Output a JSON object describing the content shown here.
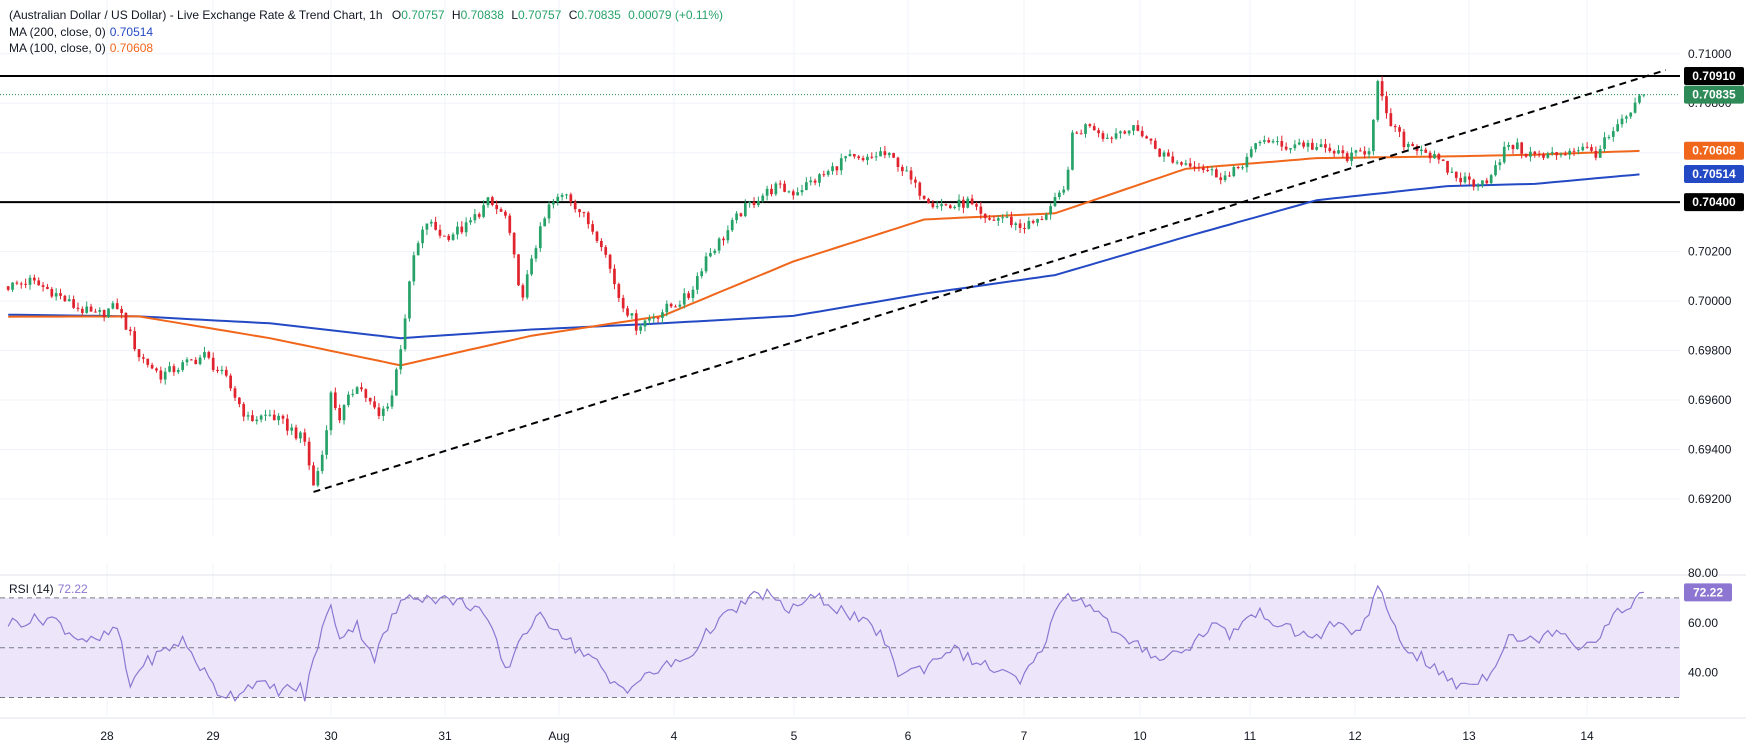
{
  "header": {
    "title": "(Australian Dollar / US Dollar) - Live Exchange Rate & Trend Chart, 1h",
    "ohlc": [
      {
        "label": "O",
        "value": "0.70757"
      },
      {
        "label": "H",
        "value": "0.70838"
      },
      {
        "label": "L",
        "value": "0.70757"
      },
      {
        "label": "C",
        "value": "0.70835"
      }
    ],
    "change": "0.00079 (+0.11%)"
  },
  "indicators": [
    {
      "label": "MA (200, close, 0)",
      "value": "0.70514",
      "color": "#2449c4"
    },
    {
      "label": "MA (100, close, 0)",
      "value": "0.70608",
      "color": "#f0661b"
    }
  ],
  "colors": {
    "up": "#26a269",
    "down": "#e0232d",
    "ma200": "#2449c4",
    "ma100": "#f0661b",
    "rsi": "#8d76d1",
    "rsi_band": "#ede6fb",
    "trend": "#000000",
    "last_price": "#2e8b57"
  },
  "chart_data": [
    {
      "type": "candlestick",
      "title": "(Australian Dollar / US Dollar) - Live Exchange Rate & Trend Chart, 1h",
      "xticks": [
        "28",
        "29",
        "30",
        "31",
        "Aug",
        "4",
        "5",
        "6",
        "7",
        "10",
        "11",
        "12",
        "13",
        "14"
      ],
      "ylim": [
        0.6905,
        0.7108
      ],
      "yticks": [
        "0.71000",
        "0.70800",
        "0.70600",
        "0.70400",
        "0.70200",
        "0.70000",
        "0.69800",
        "0.69600",
        "0.69400",
        "0.69200"
      ],
      "grid": true,
      "path_anchors": [
        [
          0,
          0.7006
        ],
        [
          5,
          0.7008
        ],
        [
          10,
          0.7004
        ],
        [
          15,
          0.6998
        ],
        [
          20,
          0.6994
        ],
        [
          25,
          0.6998
        ],
        [
          30,
          0.6978
        ],
        [
          35,
          0.697
        ],
        [
          40,
          0.6974
        ],
        [
          45,
          0.6978
        ],
        [
          50,
          0.6968
        ],
        [
          55,
          0.6952
        ],
        [
          60,
          0.6954
        ],
        [
          65,
          0.6948
        ],
        [
          68,
          0.6943
        ],
        [
          70,
          0.6925
        ],
        [
          72,
          0.6938
        ],
        [
          74,
          0.6962
        ],
        [
          76,
          0.6953
        ],
        [
          80,
          0.6967
        ],
        [
          85,
          0.6953
        ],
        [
          88,
          0.6962
        ],
        [
          90,
          0.6982
        ],
        [
          93,
          0.7018
        ],
        [
          96,
          0.7032
        ],
        [
          100,
          0.7026
        ],
        [
          105,
          0.703
        ],
        [
          110,
          0.704
        ],
        [
          114,
          0.7034
        ],
        [
          118,
          0.7
        ],
        [
          120,
          0.7018
        ],
        [
          124,
          0.7038
        ],
        [
          128,
          0.7044
        ],
        [
          132,
          0.7034
        ],
        [
          136,
          0.7024
        ],
        [
          140,
          0.7002
        ],
        [
          144,
          0.699
        ],
        [
          148,
          0.6994
        ],
        [
          152,
          0.6998
        ],
        [
          156,
          0.7002
        ],
        [
          160,
          0.7018
        ],
        [
          164,
          0.7026
        ],
        [
          168,
          0.7036
        ],
        [
          172,
          0.7042
        ],
        [
          176,
          0.7046
        ],
        [
          180,
          0.7044
        ],
        [
          184,
          0.7048
        ],
        [
          188,
          0.7052
        ],
        [
          192,
          0.7058
        ],
        [
          196,
          0.7056
        ],
        [
          200,
          0.706
        ],
        [
          204,
          0.7056
        ],
        [
          208,
          0.7046
        ],
        [
          212,
          0.704
        ],
        [
          216,
          0.7038
        ],
        [
          220,
          0.704
        ],
        [
          224,
          0.7032
        ],
        [
          228,
          0.7034
        ],
        [
          232,
          0.703
        ],
        [
          236,
          0.7032
        ],
        [
          240,
          0.704
        ],
        [
          242,
          0.7044
        ],
        [
          244,
          0.7066
        ],
        [
          248,
          0.7072
        ],
        [
          252,
          0.7066
        ],
        [
          256,
          0.707
        ],
        [
          260,
          0.7068
        ],
        [
          264,
          0.706
        ],
        [
          268,
          0.7056
        ],
        [
          272,
          0.7056
        ],
        [
          276,
          0.7052
        ],
        [
          280,
          0.705
        ],
        [
          284,
          0.7058
        ],
        [
          288,
          0.7066
        ],
        [
          292,
          0.7062
        ],
        [
          296,
          0.7064
        ],
        [
          300,
          0.7062
        ],
        [
          304,
          0.706
        ],
        [
          308,
          0.7058
        ],
        [
          312,
          0.7062
        ],
        [
          314,
          0.7088
        ],
        [
          316,
          0.7074
        ],
        [
          320,
          0.7064
        ],
        [
          324,
          0.7062
        ],
        [
          328,
          0.7056
        ],
        [
          332,
          0.705
        ],
        [
          336,
          0.7048
        ],
        [
          340,
          0.705
        ],
        [
          344,
          0.7064
        ],
        [
          348,
          0.706
        ],
        [
          352,
          0.7058
        ],
        [
          356,
          0.706
        ],
        [
          360,
          0.7062
        ],
        [
          364,
          0.706
        ],
        [
          368,
          0.7068
        ],
        [
          372,
          0.7076
        ],
        [
          375,
          0.70835
        ]
      ],
      "ma200": [
        [
          0,
          0.69945
        ],
        [
          30,
          0.69938
        ],
        [
          60,
          0.6991
        ],
        [
          90,
          0.6985
        ],
        [
          120,
          0.69885
        ],
        [
          150,
          0.6991
        ],
        [
          180,
          0.6994
        ],
        [
          210,
          0.7003
        ],
        [
          240,
          0.70105
        ],
        [
          270,
          0.7026
        ],
        [
          300,
          0.70408
        ],
        [
          330,
          0.70465
        ],
        [
          350,
          0.70474
        ],
        [
          375,
          0.70514
        ]
      ],
      "ma100": [
        [
          0,
          0.69937
        ],
        [
          30,
          0.69938
        ],
        [
          60,
          0.6985
        ],
        [
          90,
          0.6974
        ],
        [
          120,
          0.6986
        ],
        [
          150,
          0.6994
        ],
        [
          180,
          0.7016
        ],
        [
          210,
          0.7033
        ],
        [
          240,
          0.70355
        ],
        [
          270,
          0.70535
        ],
        [
          300,
          0.70578
        ],
        [
          330,
          0.70585
        ],
        [
          350,
          0.70592
        ],
        [
          375,
          0.70608
        ]
      ],
      "trendlines": [
        {
          "from": [
            70,
            0.69228
          ],
          "to": [
            380,
            0.70934
          ],
          "style": "dashed"
        }
      ],
      "levels": [
        {
          "value": 0.7091,
          "label": "0.70910"
        },
        {
          "value": 0.704,
          "label": "0.70400"
        }
      ],
      "last_price": {
        "value": 0.70835,
        "label": "0.70835"
      },
      "ma200_label": "0.70514",
      "ma100_label": "0.70608"
    },
    {
      "type": "line",
      "title": "RSI (14)",
      "value": "72.22",
      "ylim": [
        25,
        80
      ],
      "yticks": [
        "80.00",
        "60.00",
        "40.00"
      ],
      "bands": [
        70,
        50,
        30
      ],
      "anchors": [
        [
          0,
          60
        ],
        [
          10,
          62
        ],
        [
          15,
          55
        ],
        [
          20,
          52
        ],
        [
          25,
          58
        ],
        [
          28,
          34
        ],
        [
          30,
          42
        ],
        [
          35,
          48
        ],
        [
          40,
          53
        ],
        [
          45,
          40
        ],
        [
          48,
          32
        ],
        [
          52,
          31
        ],
        [
          56,
          36
        ],
        [
          62,
          33
        ],
        [
          67,
          34
        ],
        [
          68,
          30
        ],
        [
          70,
          45
        ],
        [
          72,
          58
        ],
        [
          74,
          66
        ],
        [
          76,
          55
        ],
        [
          80,
          59
        ],
        [
          84,
          46
        ],
        [
          88,
          62
        ],
        [
          92,
          72
        ],
        [
          96,
          70
        ],
        [
          102,
          69
        ],
        [
          108,
          66
        ],
        [
          112,
          52
        ],
        [
          114,
          40
        ],
        [
          118,
          56
        ],
        [
          122,
          62
        ],
        [
          126,
          58
        ],
        [
          130,
          50
        ],
        [
          134,
          46
        ],
        [
          138,
          36
        ],
        [
          142,
          34
        ],
        [
          146,
          38
        ],
        [
          150,
          42
        ],
        [
          156,
          46
        ],
        [
          162,
          60
        ],
        [
          166,
          64
        ],
        [
          170,
          70
        ],
        [
          174,
          72
        ],
        [
          178,
          65
        ],
        [
          182,
          68
        ],
        [
          186,
          70
        ],
        [
          190,
          66
        ],
        [
          196,
          60
        ],
        [
          200,
          56
        ],
        [
          204,
          40
        ],
        [
          210,
          42
        ],
        [
          216,
          50
        ],
        [
          222,
          44
        ],
        [
          228,
          40
        ],
        [
          232,
          36
        ],
        [
          236,
          46
        ],
        [
          240,
          63
        ],
        [
          242,
          72
        ],
        [
          244,
          70
        ],
        [
          248,
          68
        ],
        [
          252,
          60
        ],
        [
          256,
          52
        ],
        [
          260,
          50
        ],
        [
          264,
          46
        ],
        [
          268,
          48
        ],
        [
          272,
          52
        ],
        [
          276,
          60
        ],
        [
          280,
          55
        ],
        [
          284,
          62
        ],
        [
          288,
          64
        ],
        [
          292,
          58
        ],
        [
          296,
          56
        ],
        [
          300,
          54
        ],
        [
          304,
          60
        ],
        [
          308,
          56
        ],
        [
          312,
          62
        ],
        [
          314,
          74
        ],
        [
          316,
          66
        ],
        [
          320,
          50
        ],
        [
          324,
          46
        ],
        [
          328,
          40
        ],
        [
          332,
          35
        ],
        [
          336,
          36
        ],
        [
          340,
          40
        ],
        [
          344,
          56
        ],
        [
          348,
          52
        ],
        [
          352,
          55
        ],
        [
          356,
          58
        ],
        [
          360,
          50
        ],
        [
          364,
          54
        ],
        [
          368,
          62
        ],
        [
          372,
          68
        ],
        [
          375,
          72.22
        ]
      ]
    }
  ]
}
